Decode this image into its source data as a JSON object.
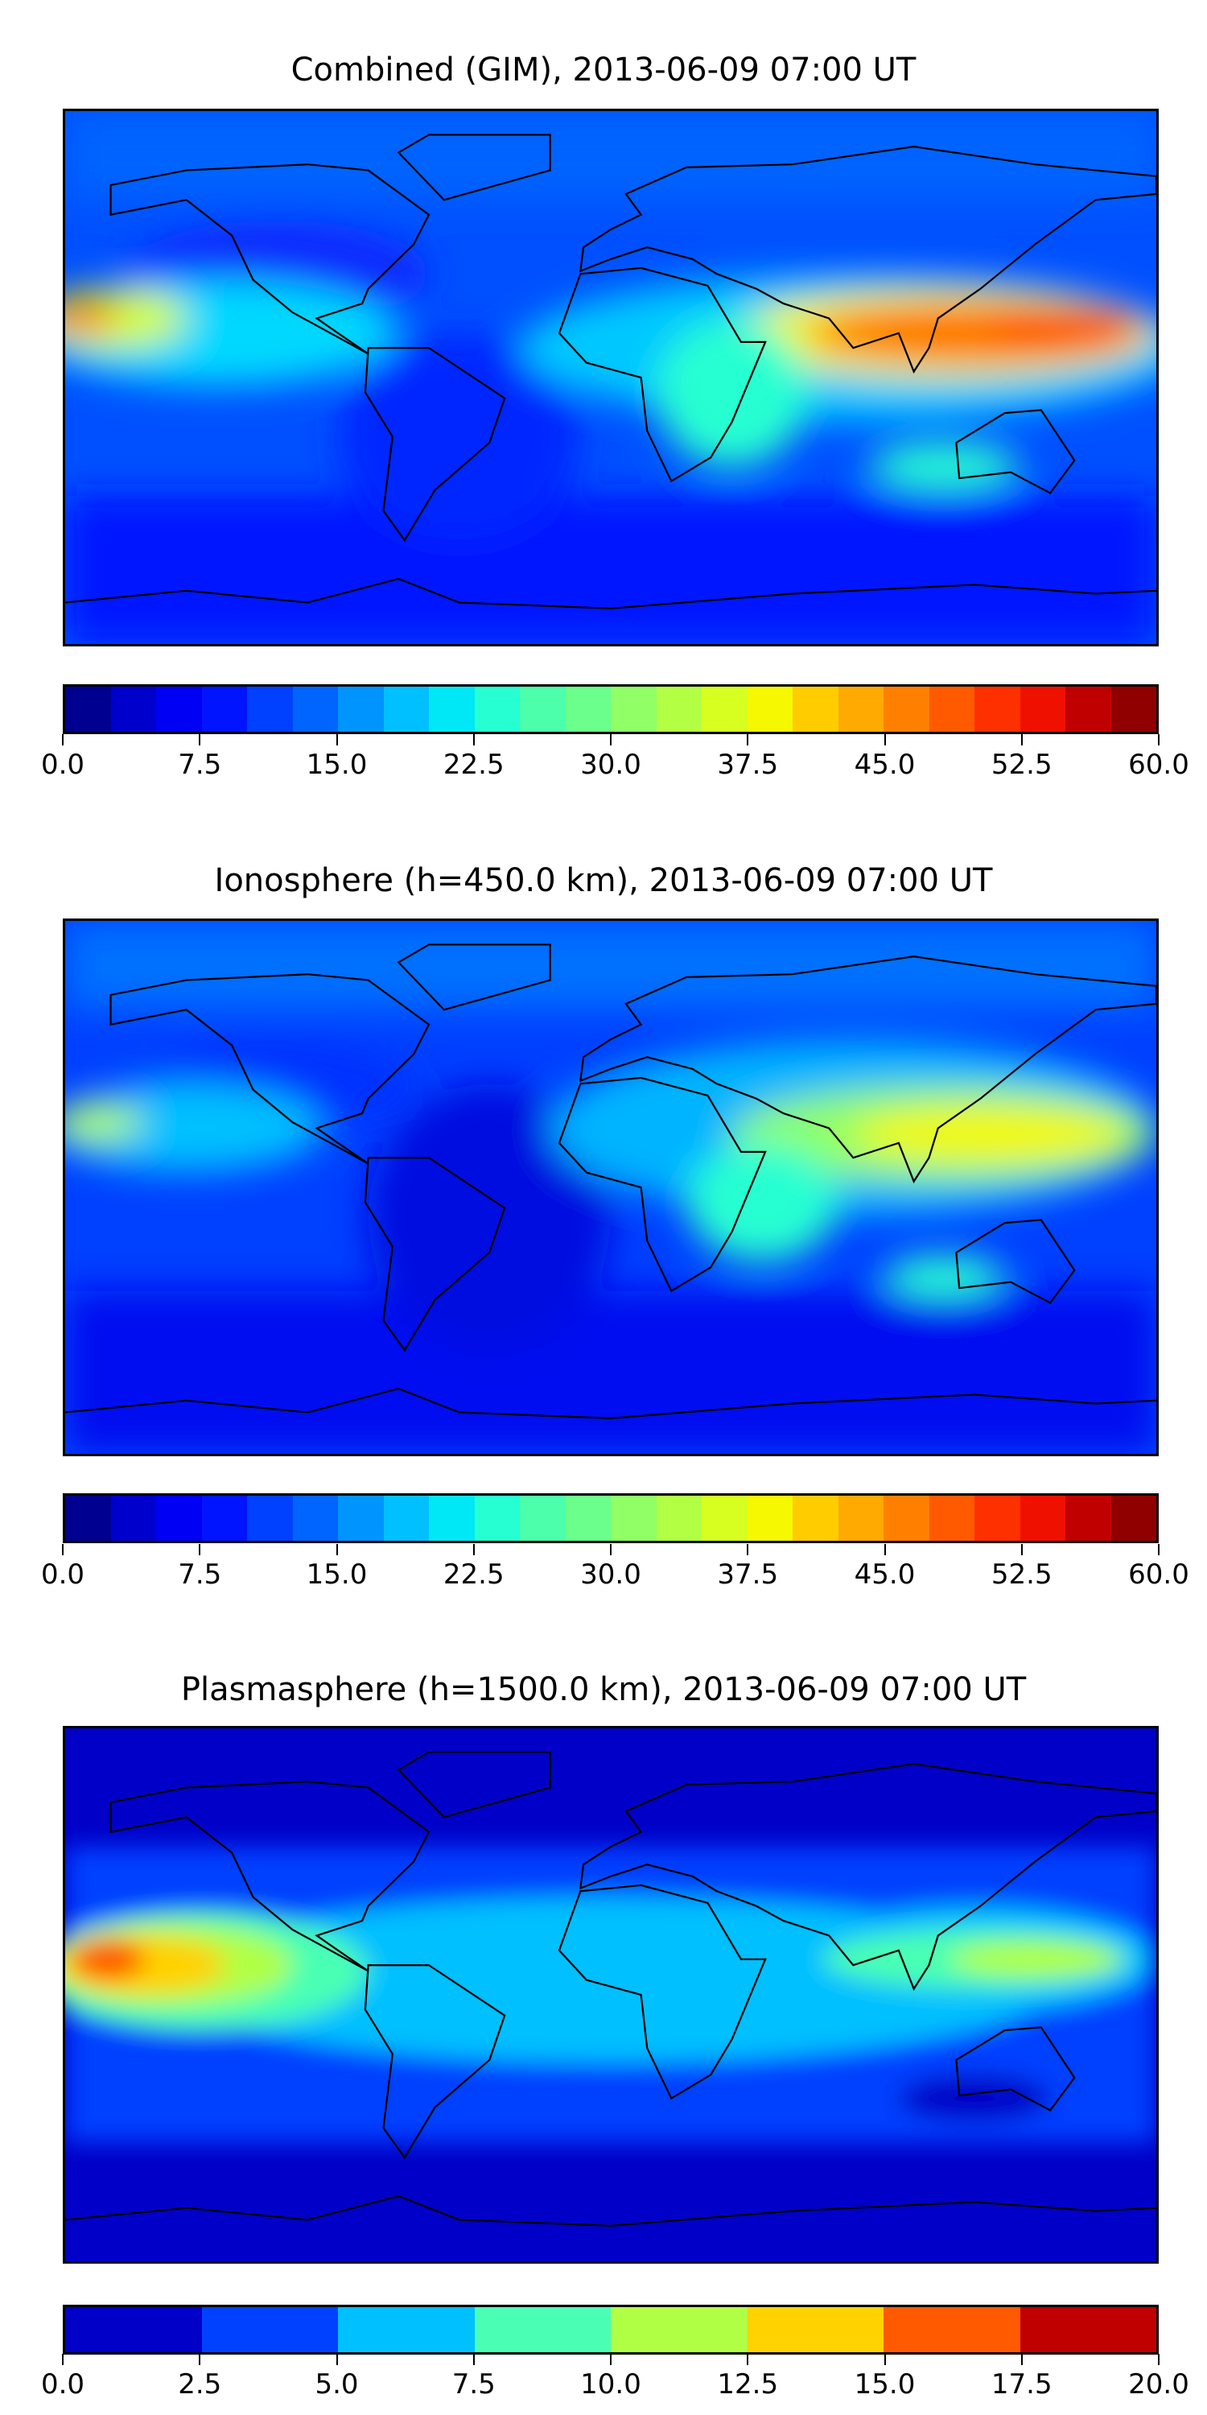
{
  "chart_data": [
    {
      "type": "heatmap",
      "title": "Combined (GIM), 2013-06-09 07:00 UT",
      "colorbar_range": [
        0,
        60
      ],
      "colorbar_ticks": [
        "0.0",
        "7.5",
        "15.0",
        "22.5",
        "30.0",
        "37.5",
        "45.0",
        "52.5",
        "60.0"
      ],
      "levels": 24,
      "colors": [
        "#000090",
        "#0000cc",
        "#0000f5",
        "#0014ff",
        "#0040ff",
        "#0064ff",
        "#0094ff",
        "#00c0ff",
        "#00e8f5",
        "#26ffd2",
        "#4bffab",
        "#6bff8b",
        "#91ff66",
        "#b3ff44",
        "#d7ff20",
        "#f5f800",
        "#ffcc00",
        "#ffaa00",
        "#ff8000",
        "#ff5a00",
        "#ff3000",
        "#f01000",
        "#c00000",
        "#900000"
      ]
    },
    {
      "type": "heatmap",
      "title": "Ionosphere  (h=450.0 km), 2013-06-09 07:00 UT",
      "colorbar_range": [
        0,
        60
      ],
      "colorbar_ticks": [
        "0.0",
        "7.5",
        "15.0",
        "22.5",
        "30.0",
        "37.5",
        "45.0",
        "52.5",
        "60.0"
      ],
      "levels": 24,
      "colors": [
        "#000090",
        "#0000cc",
        "#0000f5",
        "#0014ff",
        "#0040ff",
        "#0064ff",
        "#0094ff",
        "#00c0ff",
        "#00e8f5",
        "#26ffd2",
        "#4bffab",
        "#6bff8b",
        "#91ff66",
        "#b3ff44",
        "#d7ff20",
        "#f5f800",
        "#ffcc00",
        "#ffaa00",
        "#ff8000",
        "#ff5a00",
        "#ff3000",
        "#f01000",
        "#c00000",
        "#900000"
      ]
    },
    {
      "type": "heatmap",
      "title": "Plasmasphere (h=1500.0 km), 2013-06-09 07:00 UT",
      "colorbar_range": [
        0,
        20
      ],
      "colorbar_ticks": [
        "0.0",
        "2.5",
        "5.0",
        "7.5",
        "10.0",
        "12.5",
        "15.0",
        "17.5",
        "20.0"
      ],
      "levels": 8,
      "colors": [
        "#0000c8",
        "#0040ff",
        "#00c0ff",
        "#4affb4",
        "#b0ff44",
        "#ffd200",
        "#ff5a00",
        "#c00000"
      ]
    }
  ]
}
